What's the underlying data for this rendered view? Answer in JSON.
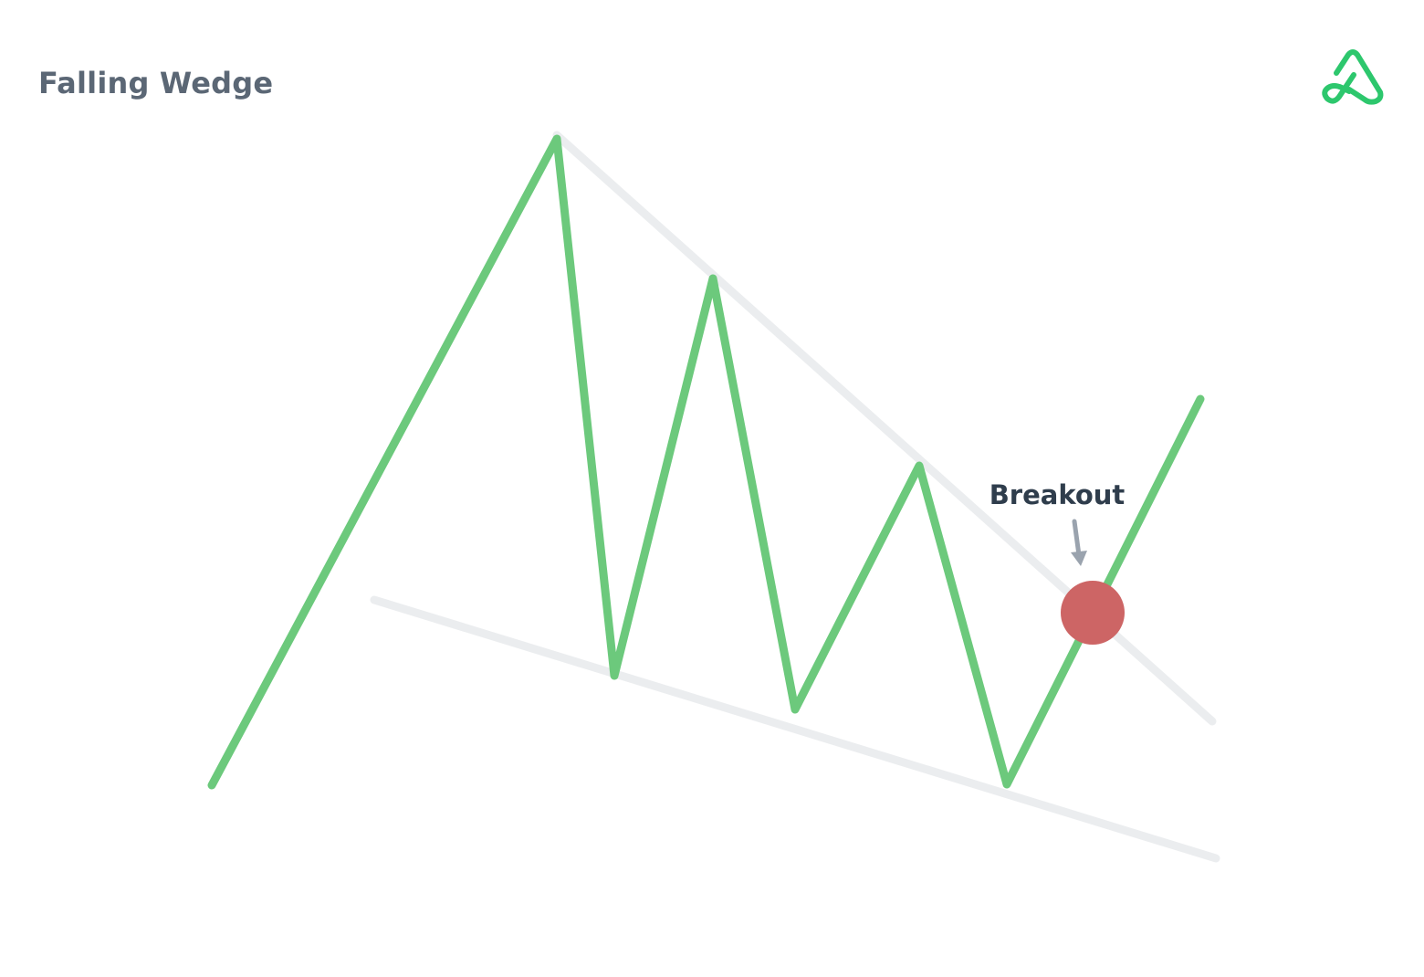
{
  "title": "Falling Wedge",
  "annotation": {
    "label": "Breakout"
  },
  "colors": {
    "price_line": "#6cc97c",
    "trend_lines": "#ebedef",
    "breakout_marker": "#cd6565",
    "annotation_text": "#2f3d4c",
    "annotation_arrow": "#9aa3ae",
    "title_text": "#5b6775",
    "logo": "#2dc76d"
  },
  "logo": {
    "icon": "brand-logo-icon"
  }
}
